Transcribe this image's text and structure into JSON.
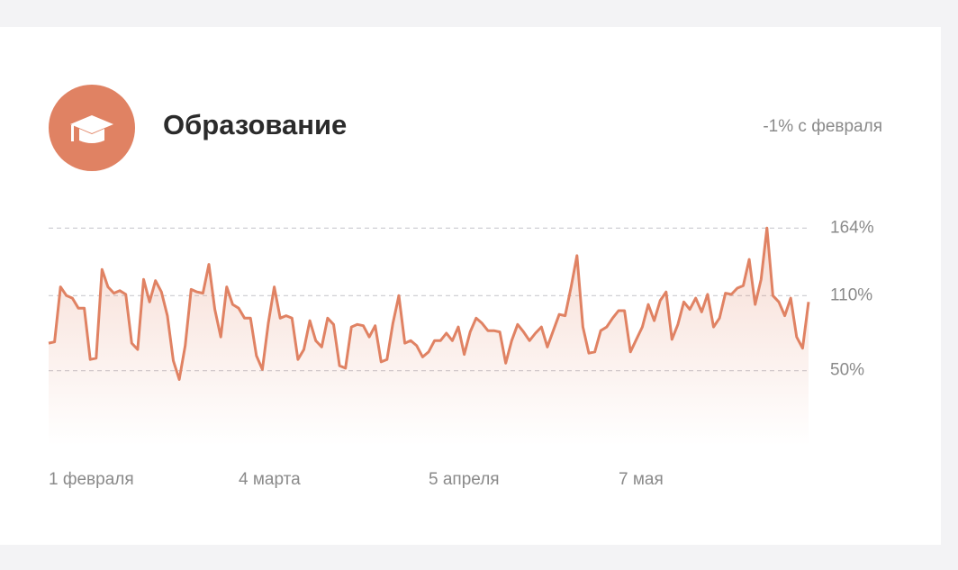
{
  "header": {
    "title": "Образование",
    "subtitle": "-1% с февраля"
  },
  "chart_data": {
    "type": "line",
    "categories": [
      "1 февраля",
      null,
      null,
      null,
      null,
      null,
      null,
      null,
      null,
      null,
      null,
      null,
      null,
      null,
      null,
      null,
      null,
      null,
      null,
      null,
      null,
      null,
      null,
      null,
      null,
      null,
      null,
      null,
      null,
      null,
      null,
      null,
      "4 марта",
      null,
      null,
      null,
      null,
      null,
      null,
      null,
      null,
      null,
      null,
      null,
      null,
      null,
      null,
      null,
      null,
      null,
      null,
      null,
      null,
      null,
      null,
      null,
      null,
      null,
      null,
      null,
      null,
      null,
      null,
      null,
      "5 апреля",
      null,
      null,
      null,
      null,
      null,
      null,
      null,
      null,
      null,
      null,
      null,
      null,
      null,
      null,
      null,
      null,
      null,
      null,
      null,
      null,
      null,
      null,
      null,
      null,
      null,
      null,
      null,
      null,
      null,
      null,
      null,
      "7 мая",
      null,
      null,
      null,
      null,
      null,
      null,
      null,
      null,
      null,
      null,
      null,
      null,
      null,
      null,
      null,
      null,
      null,
      null,
      null,
      null,
      null,
      null,
      null,
      null,
      null,
      null,
      null,
      null,
      null,
      null,
      null,
      null
    ],
    "values": [
      72,
      73,
      117,
      110,
      108,
      100,
      100,
      59,
      60,
      131,
      117,
      112,
      114,
      111,
      72,
      67,
      123,
      105,
      122,
      113,
      94,
      58,
      43,
      70,
      115,
      113,
      112,
      135,
      99,
      77,
      117,
      103,
      100,
      92,
      92,
      62,
      51,
      88,
      117,
      92,
      94,
      92,
      59,
      67,
      90,
      74,
      69,
      92,
      87,
      54,
      52,
      85,
      87,
      86,
      77,
      86,
      57,
      59,
      88,
      110,
      72,
      74,
      70,
      61,
      65,
      74,
      74,
      80,
      74,
      85,
      63,
      81,
      92,
      88,
      82,
      82,
      81,
      56,
      74,
      87,
      81,
      74,
      80,
      85,
      69,
      82,
      95,
      94,
      117,
      142,
      85,
      64,
      65,
      82,
      85,
      92,
      98,
      98,
      65,
      75,
      85,
      103,
      90,
      106,
      113,
      75,
      87,
      105,
      99,
      108,
      97,
      111,
      85,
      92,
      112,
      111,
      116,
      118,
      139,
      103,
      123,
      164,
      110,
      105,
      94,
      108,
      77,
      68,
      105
    ],
    "color": "#e08263",
    "ylim": [
      -10,
      170
    ],
    "yticks": [
      {
        "value": 50,
        "label": "50%"
      },
      {
        "value": 110,
        "label": "110%"
      },
      {
        "value": 164,
        "label": "164%"
      }
    ],
    "grid": true
  }
}
